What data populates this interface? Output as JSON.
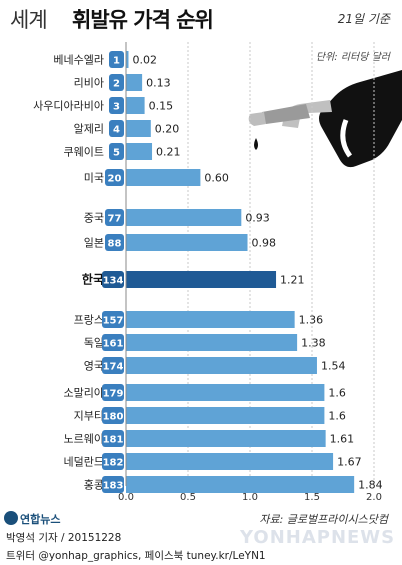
{
  "header": {
    "title_light": "세계",
    "title_bold": "휘발유 가격 순위",
    "date_note": "21일 기준",
    "unit_note": "단위: 리터당 달러"
  },
  "footer": {
    "source": "자료: 글로벌프라이시스닷컴",
    "agency": "연합뉴스",
    "credit": "박영석 기자 / 20151228",
    "social": "트위터 @yonhap_graphics, 페이스북 tuney.kr/LeYN1",
    "watermark": "YONHAPNEWS"
  },
  "chart_data": {
    "type": "bar",
    "orientation": "horizontal",
    "categories": [
      "베네수엘라",
      "리비아",
      "사우디아라비아",
      "알제리",
      "쿠웨이트",
      "미국",
      "중국",
      "일본",
      "한국",
      "프랑스",
      "독일",
      "영국",
      "소말리아",
      "지부티",
      "노르웨이",
      "네덜란드",
      "홍콩"
    ],
    "ranks": [
      "1",
      "2",
      "3",
      "4",
      "5",
      "20",
      "77",
      "88",
      "134",
      "157",
      "161",
      "174",
      "179",
      "180",
      "181",
      "182",
      "183"
    ],
    "values": [
      0.02,
      0.13,
      0.15,
      0.2,
      0.21,
      0.6,
      0.93,
      0.98,
      1.21,
      1.36,
      1.38,
      1.54,
      1.6,
      1.6,
      1.61,
      1.67,
      1.84
    ],
    "value_labels": [
      "0.02",
      "0.13",
      "0.15",
      "0.20",
      "0.21",
      "0.60",
      "0.93",
      "0.98",
      "1.21",
      "1.36",
      "1.38",
      "1.54",
      "1.6",
      "1.6",
      "1.61",
      "1.67",
      "1.84"
    ],
    "highlight": "한국",
    "xlim": [
      0,
      2.0
    ],
    "ticks": [
      "0.0",
      "0.5",
      "1.0",
      "1.5",
      "2.0"
    ],
    "colors": {
      "bar": "#5fa3d6",
      "bar_highlight": "#1f5a95",
      "rank_badge": "#3a7fbf",
      "rank_badge_highlight": "#1f5a95",
      "grid": "#c8c8c8"
    }
  }
}
